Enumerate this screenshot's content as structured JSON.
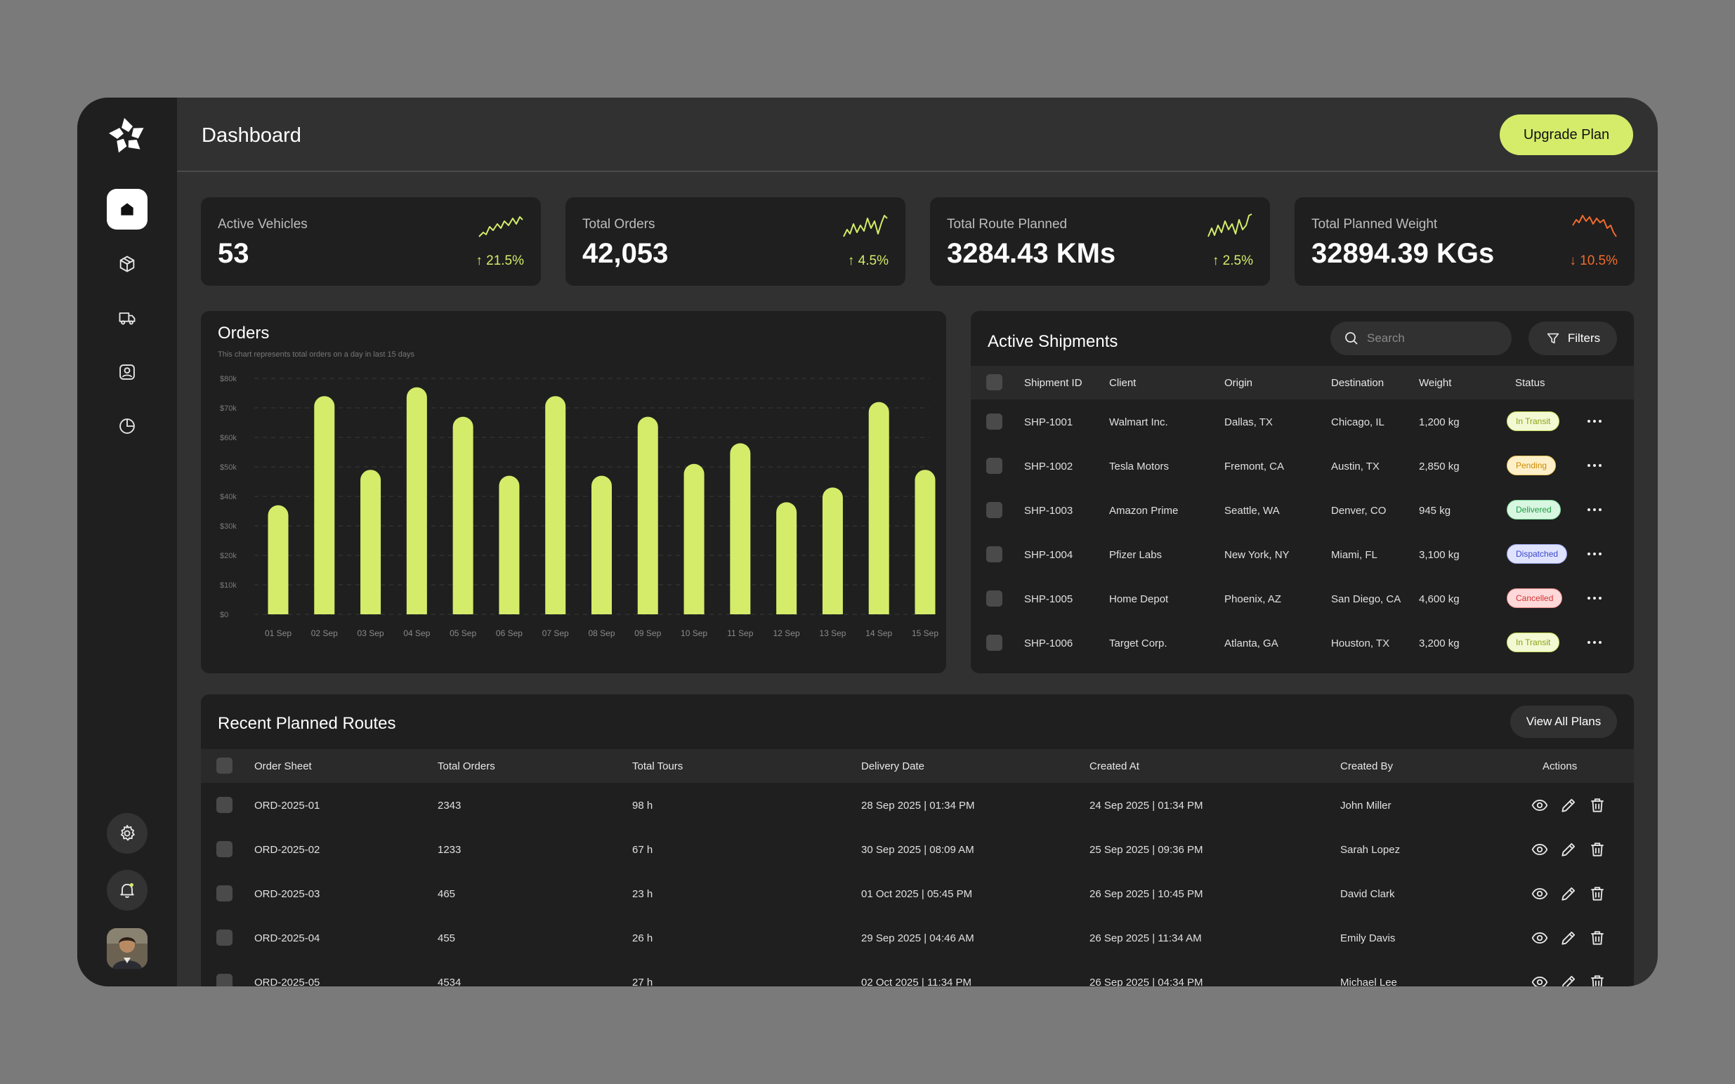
{
  "header": {
    "title": "Dashboard",
    "upgrade_label": "Upgrade Plan"
  },
  "sidebar": {
    "items": [
      {
        "icon": "home-icon",
        "active": true
      },
      {
        "icon": "package-icon",
        "active": false
      },
      {
        "icon": "truck-icon",
        "active": false
      },
      {
        "icon": "user-icon",
        "active": false
      },
      {
        "icon": "pie-chart-icon",
        "active": false
      }
    ],
    "bottom": [
      "gear-icon",
      "bell-icon"
    ]
  },
  "stats": [
    {
      "label": "Active Vehicles",
      "value": "53",
      "delta": "↑ 21.5%",
      "trend": "up"
    },
    {
      "label": "Total Orders",
      "value": "42,053",
      "delta": "↑ 4.5%",
      "trend": "up"
    },
    {
      "label": "Total Route Planned",
      "value": "3284.43 KMs",
      "delta": "↑ 2.5%",
      "trend": "up"
    },
    {
      "label": "Total Planned Weight",
      "value": "32894.39 KGs",
      "delta": "↓ 10.5%",
      "trend": "down"
    }
  ],
  "colors": {
    "accent": "#d4ec6a",
    "down": "#f26b2c",
    "panel": "#1f1f1f",
    "background": "#313131"
  },
  "orders": {
    "title": "Orders",
    "subtitle": "This chart represents total orders on a day in last 15 days"
  },
  "chart_data": {
    "type": "bar",
    "title": "Orders",
    "categories": [
      "01 Sep",
      "02 Sep",
      "03 Sep",
      "04 Sep",
      "05 Sep",
      "06 Sep",
      "07 Sep",
      "08 Sep",
      "09 Sep",
      "10 Sep",
      "11 Sep",
      "12 Sep",
      "13 Sep",
      "14 Sep",
      "15 Sep"
    ],
    "values": [
      37000,
      74000,
      49000,
      77000,
      67000,
      47000,
      74000,
      47000,
      67000,
      51000,
      58000,
      38000,
      43000,
      72000,
      49000
    ],
    "y_ticks": [
      "$0",
      "$10k",
      "$20k",
      "$30k",
      "$40k",
      "$50k",
      "$60k",
      "$70k",
      "$80k"
    ],
    "ylim": [
      0,
      80000
    ],
    "grid": true,
    "color": "#d4ec6a"
  },
  "shipments": {
    "title": "Active Shipments",
    "search_placeholder": "Search",
    "filters_label": "Filters",
    "columns": [
      "Shipment ID",
      "Client",
      "Origin",
      "Destination",
      "Weight",
      "Status"
    ],
    "rows": [
      {
        "id": "SHP-1001",
        "client": "Walmart Inc.",
        "origin": "Dallas, TX",
        "destination": "Chicago, IL",
        "weight": "1,200 kg",
        "status": "In Transit"
      },
      {
        "id": "SHP-1002",
        "client": "Tesla Motors",
        "origin": "Fremont, CA",
        "destination": "Austin, TX",
        "weight": "2,850 kg",
        "status": "Pending"
      },
      {
        "id": "SHP-1003",
        "client": "Amazon Prime",
        "origin": "Seattle, WA",
        "destination": "Denver, CO",
        "weight": "945 kg",
        "status": "Delivered"
      },
      {
        "id": "SHP-1004",
        "client": "Pfizer Labs",
        "origin": "New York, NY",
        "destination": "Miami, FL",
        "weight": "3,100 kg",
        "status": "Dispatched"
      },
      {
        "id": "SHP-1005",
        "client": "Home Depot",
        "origin": "Phoenix, AZ",
        "destination": "San Diego, CA",
        "weight": "4,600 kg",
        "status": "Cancelled"
      },
      {
        "id": "SHP-1006",
        "client": "Target Corp.",
        "origin": "Atlanta, GA",
        "destination": "Houston, TX",
        "weight": "3,200 kg",
        "status": "In Transit"
      }
    ],
    "status_colors": {
      "In Transit": {
        "bg": "#f3f9d2",
        "fg": "#8aa31a",
        "border": "#c8df5a"
      },
      "Pending": {
        "bg": "#fdf0c9",
        "fg": "#d08a00",
        "border": "#f1c85a"
      },
      "Delivered": {
        "bg": "#d8f7e0",
        "fg": "#1f9a44",
        "border": "#7fd99a"
      },
      "Dispatched": {
        "bg": "#dfe3ff",
        "fg": "#3a47c9",
        "border": "#9aa4f2"
      },
      "Cancelled": {
        "bg": "#ffd9d9",
        "fg": "#d33434",
        "border": "#f08c8c"
      }
    }
  },
  "routes": {
    "title": "Recent Planned Routes",
    "view_all_label": "View All Plans",
    "columns": [
      "Order Sheet",
      "Total Orders",
      "Total Tours",
      "Delivery Date",
      "Created At",
      "Created By",
      "Actions"
    ],
    "rows": [
      {
        "sheet": "ORD-2025-01",
        "orders": "2343",
        "tours": "98 h",
        "delivery": "28 Sep 2025 | 01:34 PM",
        "created": "24 Sep 2025 | 01:34 PM",
        "by": "John Miller"
      },
      {
        "sheet": "ORD-2025-02",
        "orders": "1233",
        "tours": "67 h",
        "delivery": "30 Sep 2025 | 08:09 AM",
        "created": "25 Sep 2025 | 09:36 PM",
        "by": "Sarah Lopez"
      },
      {
        "sheet": "ORD-2025-03",
        "orders": "465",
        "tours": "23 h",
        "delivery": "01 Oct 2025 | 05:45 PM",
        "created": "26 Sep 2025 | 10:45 PM",
        "by": "David Clark"
      },
      {
        "sheet": "ORD-2025-04",
        "orders": "455",
        "tours": "26 h",
        "delivery": "29 Sep 2025 | 04:46 AM",
        "created": "26 Sep 2025 | 11:34 AM",
        "by": "Emily Davis"
      },
      {
        "sheet": "ORD-2025-05",
        "orders": "4534",
        "tours": "27 h",
        "delivery": "02 Oct 2025 | 11:34 PM",
        "created": "26 Sep 2025 | 04:34 PM",
        "by": "Michael Lee"
      }
    ],
    "action_icons": [
      "eye-icon",
      "pencil-icon",
      "trash-icon"
    ]
  }
}
